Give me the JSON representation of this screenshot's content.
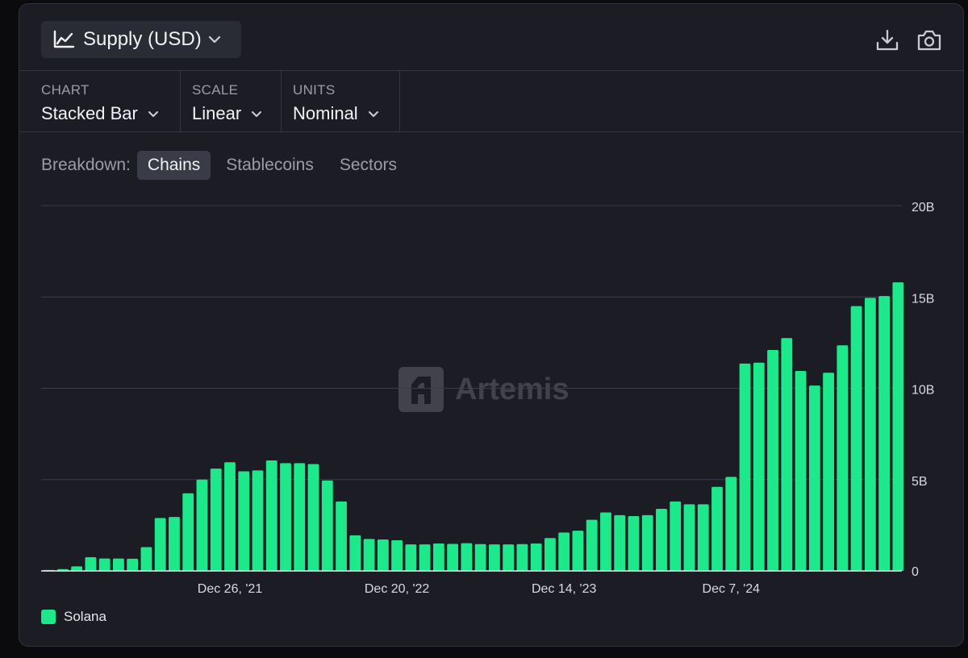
{
  "header": {
    "metric_label": "Supply (USD)",
    "icons": [
      "line-chart-icon",
      "chevron-down-icon",
      "download-icon",
      "camera-icon"
    ]
  },
  "controls": {
    "chart": {
      "caption": "CHART",
      "value": "Stacked Bar"
    },
    "scale": {
      "caption": "SCALE",
      "value": "Linear"
    },
    "units": {
      "caption": "UNITS",
      "value": "Nominal"
    }
  },
  "breakdown": {
    "label": "Breakdown:",
    "options": [
      "Chains",
      "Stablecoins",
      "Sectors"
    ],
    "active": "Chains"
  },
  "watermark": "Artemis",
  "colors": {
    "bar": "#1de98b",
    "background": "#1c1d24",
    "grid": "#3a3c47"
  },
  "chart_data": {
    "type": "bar",
    "stacked": true,
    "title": "Supply (USD)",
    "xlabel": "",
    "ylabel": "",
    "ylim": [
      0,
      20000000000
    ],
    "yticks": [
      0,
      5000000000,
      10000000000,
      15000000000,
      20000000000
    ],
    "ytick_labels": [
      "0",
      "5B",
      "10B",
      "15B",
      "20B"
    ],
    "xtick_labels": [
      {
        "label": "Dec 26, '21",
        "index": 13
      },
      {
        "label": "Dec 20, '22",
        "index": 25
      },
      {
        "label": "Dec 14, '23",
        "index": 37
      },
      {
        "label": "Dec 7, '24",
        "index": 49
      }
    ],
    "series": [
      {
        "name": "Solana",
        "color": "#1de98b",
        "values": [
          0.05,
          0.1,
          0.25,
          0.75,
          0.68,
          0.68,
          0.67,
          1.3,
          2.9,
          2.95,
          4.25,
          5.0,
          5.6,
          5.95,
          5.45,
          5.5,
          6.05,
          5.9,
          5.9,
          5.85,
          4.95,
          3.8,
          1.95,
          1.75,
          1.72,
          1.68,
          1.45,
          1.45,
          1.5,
          1.48,
          1.52,
          1.47,
          1.45,
          1.45,
          1.47,
          1.5,
          1.8,
          2.1,
          2.2,
          2.8,
          3.2,
          3.05,
          3.0,
          3.05,
          3.4,
          3.8,
          3.65,
          3.65,
          4.6,
          5.15,
          11.35,
          11.4,
          12.1,
          12.75,
          10.95,
          10.15,
          10.85,
          12.35,
          14.5,
          14.95,
          15.05,
          15.8
        ]
      }
    ],
    "unit_note": "values in billions USD",
    "legend": {
      "placement": "bottom-left",
      "entries": [
        "Solana"
      ]
    }
  }
}
